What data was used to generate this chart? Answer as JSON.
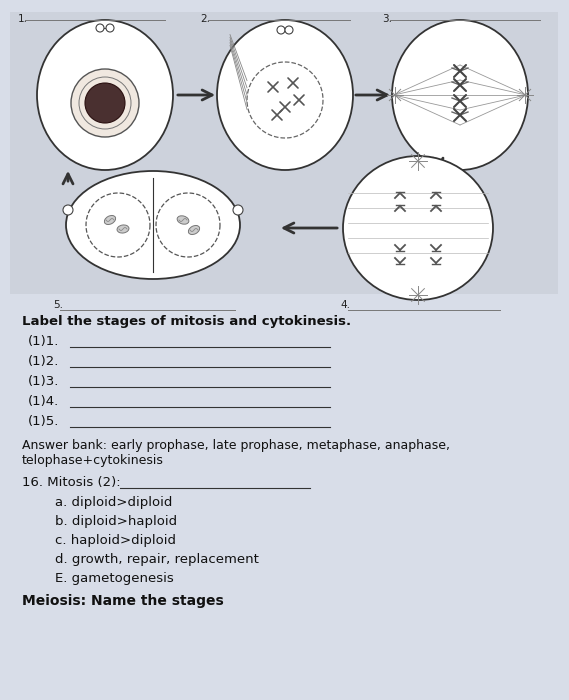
{
  "bg_color": "#d8dde8",
  "white": "#ffffff",
  "dark": "#222222",
  "mid": "#555555",
  "light_gray": "#aaaaaa",
  "title_diagram": "Label the stages of mitosis and cytokinesis.",
  "items_prefix": [
    "(1)1.",
    "(1)2.",
    "(1)3.",
    "(1)4.",
    "(1)5."
  ],
  "answer_bank_line1": "Answer bank: early prophase, late prophase, metaphase, anaphase,",
  "answer_bank_line2": "telophase+cytokinesis",
  "question16": "16. Mitosis (2):",
  "choices": [
    "a. diploid>diploid",
    "b. diploid>haploid",
    "c. haploid>diploid",
    "d. growth, repair, replacement",
    "E. gametogenesis"
  ],
  "footer": "Meiosis: Name the stages",
  "fig_w": 5.69,
  "fig_h": 7.0,
  "dpi": 100
}
